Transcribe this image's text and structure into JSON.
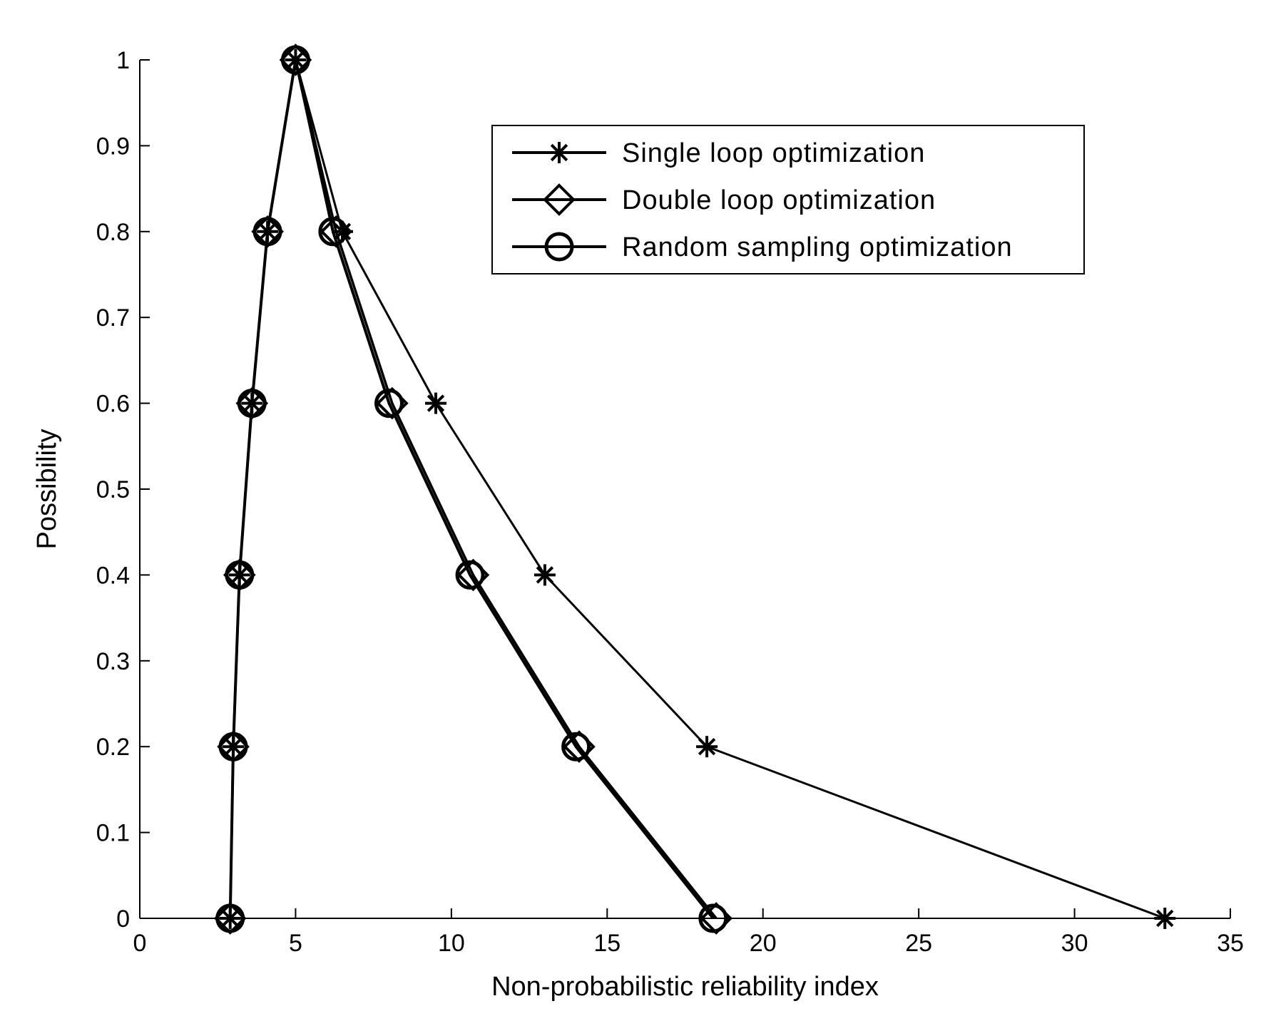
{
  "chart_data": {
    "type": "line",
    "title": "",
    "xlabel": "Non-probabilistic reliability index",
    "ylabel": "Possibility",
    "xlim": [
      0,
      35
    ],
    "ylim": [
      0,
      1
    ],
    "xticks": [
      0,
      5,
      10,
      15,
      20,
      25,
      30,
      35
    ],
    "yticks": [
      0,
      0.1,
      0.2,
      0.3,
      0.4,
      0.5,
      0.6,
      0.7,
      0.8,
      0.9,
      1
    ],
    "xtick_labels": [
      "0",
      "5",
      "10",
      "15",
      "20",
      "25",
      "30",
      "35"
    ],
    "ytick_labels": [
      "0",
      "0.1",
      "0.2",
      "0.3",
      "0.4",
      "0.5",
      "0.6",
      "0.7",
      "0.8",
      "0.9",
      "1"
    ],
    "grid": false,
    "legend_position": "top-right",
    "series": [
      {
        "name": "Single loop optimization",
        "marker": "asterisk",
        "points": [
          [
            2.9,
            0
          ],
          [
            3.0,
            0.2
          ],
          [
            3.2,
            0.4
          ],
          [
            3.6,
            0.6
          ],
          [
            4.1,
            0.8
          ],
          [
            5.0,
            1.0
          ],
          [
            6.5,
            0.8
          ],
          [
            9.5,
            0.6
          ],
          [
            13.0,
            0.4
          ],
          [
            18.2,
            0.2
          ],
          [
            32.9,
            0
          ]
        ]
      },
      {
        "name": "Double loop optimization",
        "marker": "diamond",
        "points": [
          [
            2.9,
            0
          ],
          [
            3.0,
            0.2
          ],
          [
            3.2,
            0.4
          ],
          [
            3.6,
            0.6
          ],
          [
            4.1,
            0.8
          ],
          [
            5.0,
            1.0
          ],
          [
            6.3,
            0.8
          ],
          [
            8.1,
            0.6
          ],
          [
            10.7,
            0.4
          ],
          [
            14.1,
            0.2
          ],
          [
            18.5,
            0
          ]
        ]
      },
      {
        "name": "Random sampling optimization",
        "marker": "circle",
        "points": [
          [
            2.9,
            0
          ],
          [
            3.0,
            0.2
          ],
          [
            3.2,
            0.4
          ],
          [
            3.6,
            0.6
          ],
          [
            4.1,
            0.8
          ],
          [
            5.0,
            1.0
          ],
          [
            6.2,
            0.8
          ],
          [
            8.0,
            0.6
          ],
          [
            10.6,
            0.4
          ],
          [
            14.0,
            0.2
          ],
          [
            18.4,
            0
          ]
        ]
      }
    ]
  }
}
